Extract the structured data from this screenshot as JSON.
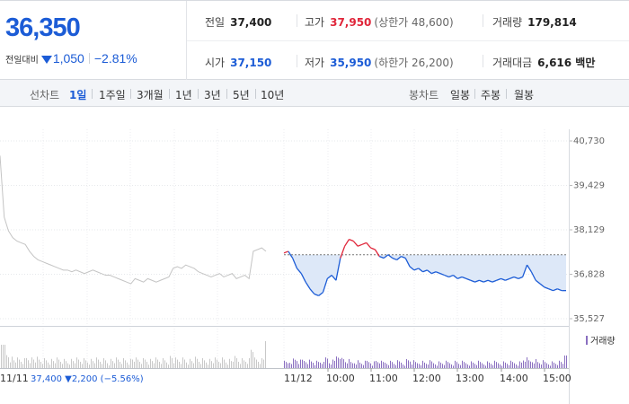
{
  "quote": {
    "price": "36,350",
    "change_label": "전일대비",
    "change_value": "1,050",
    "change_rate": "−2.81%",
    "prev_close": {
      "label": "전일",
      "value": "37,400"
    },
    "high": {
      "label": "고가",
      "value": "37,950",
      "limit_label": "(상한가 48,600)"
    },
    "volume": {
      "label": "거래량",
      "value": "179,814"
    },
    "open": {
      "label": "시가",
      "value": "37,150"
    },
    "low": {
      "label": "저가",
      "value": "35,950",
      "limit_label": "(하한가 26,200)"
    },
    "amount": {
      "label": "거래대금",
      "value": "6,616 백만"
    }
  },
  "period_bar": {
    "line_chart_label": "선차트",
    "line_periods": [
      "1일",
      "1주일",
      "3개월",
      "1년",
      "3년",
      "5년",
      "10년"
    ],
    "active_period": "1일",
    "candle_chart_label": "봉차트",
    "candle_periods": [
      "일봉",
      "주봉",
      "월봉"
    ]
  },
  "colors": {
    "up": "#e0263a",
    "down": "#1c5cd6",
    "fill": "#dde8f8",
    "prev_day_line": "#c4c4c4",
    "volume_prev": "#c8c8c8",
    "volume_today": "#8a6fc0"
  },
  "chart_data": {
    "type": "line",
    "y_ticks": [
      "40,730",
      "39,429",
      "38,129",
      "36,828",
      "35,527"
    ],
    "ylim": [
      35527,
      40730
    ],
    "reference_price": 37400,
    "prev_day": {
      "label": "11/11",
      "summary": "37,400 ▼2,200 (−5.56%)",
      "values": [
        40300,
        38500,
        38100,
        37900,
        37800,
        37750,
        37700,
        37500,
        37350,
        37250,
        37200,
        37150,
        37100,
        37050,
        37000,
        36950,
        36950,
        36900,
        36950,
        36900,
        36850,
        36900,
        36950,
        36900,
        36850,
        36800,
        36800,
        36750,
        36700,
        36650,
        36600,
        36550,
        36700,
        36650,
        36600,
        36700,
        36650,
        36600,
        36650,
        36700,
        36750,
        37000,
        37050,
        37000,
        37100,
        37050,
        37000,
        36900,
        36850,
        36800,
        36750,
        36800,
        36850,
        36750,
        36800,
        36850,
        36700,
        36750,
        36800,
        36700,
        37500,
        37550,
        37600,
        37500
      ]
    },
    "today": {
      "label": "11/12",
      "x_labels": [
        "10:00",
        "11:00",
        "12:00",
        "13:00",
        "14:00",
        "15:00"
      ],
      "values": [
        37450,
        37500,
        37300,
        37000,
        36850,
        36600,
        36400,
        36250,
        36200,
        36300,
        36700,
        36800,
        36650,
        37300,
        37650,
        37850,
        37800,
        37650,
        37700,
        37750,
        37600,
        37550,
        37350,
        37300,
        37400,
        37300,
        37250,
        37350,
        37300,
        37050,
        36950,
        37000,
        36900,
        36950,
        36850,
        36900,
        36850,
        36800,
        36750,
        36800,
        36700,
        36750,
        36700,
        36650,
        36600,
        36650,
        36600,
        36650,
        36600,
        36650,
        36700,
        36650,
        36700,
        36750,
        36700,
        36750,
        37100,
        36900,
        36650,
        36550,
        36450,
        36400,
        36350,
        36400,
        36350,
        36350
      ]
    },
    "volume_label": "거래량"
  }
}
